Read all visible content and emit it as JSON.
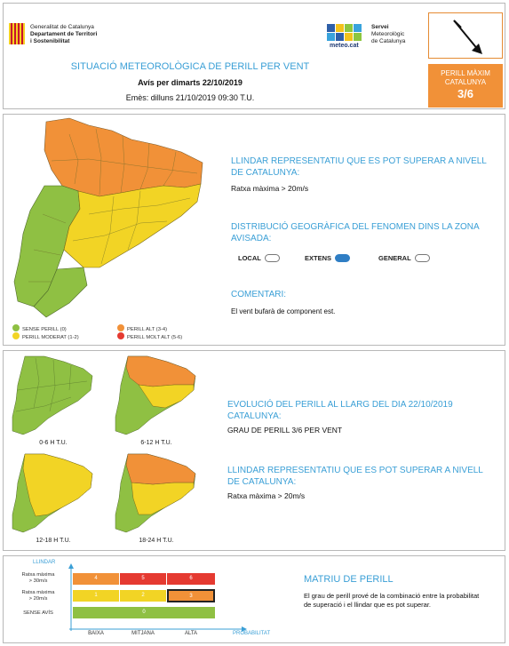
{
  "header": {
    "gencat": [
      "Generalitat de Catalunya",
      "Departament de Territori",
      "i Sostenibilitat"
    ],
    "meteo_brand": "meteo.cat",
    "smc": [
      "Servei",
      "Meteorològic",
      "de Catalunya"
    ],
    "title": "SITUACIÓ METEOROLÒGICA DE PERILL PER VENT",
    "avis": "Avís per dimarts 22/10/2019",
    "emes": "Emès: dilluns 21/10/2019 09:30 T.U.",
    "max_label_1": "PERILL MÀXIM",
    "max_label_2": "CATALUNYA",
    "max_value": "3/6",
    "arrow_icon": "wind-direction-arrow-icon"
  },
  "map_section": {
    "legend": [
      {
        "label": "SENSE PERILL (0)",
        "color": "#8fc043"
      },
      {
        "label": "PERILL MODERAT (1-2)",
        "color": "#f2d425"
      },
      {
        "label": "PERILL ALT (3-4)",
        "color": "#f19138"
      },
      {
        "label": "PERILL MOLT ALT (5-6)",
        "color": "#e53a31"
      }
    ],
    "llindar_title": "LLINDAR REPRESENTATIU QUE ES POT SUPERAR A NIVELL DE CATALUNYA:",
    "llindar_text": "Ratxa màxima > 20m/s",
    "distrib_title": "DISTRIBUCIÓ GEOGRÀFICA DEL FENOMEN DINS LA ZONA AVISADA:",
    "options": [
      {
        "label": "LOCAL",
        "active": false
      },
      {
        "label": "EXTENS",
        "active": true
      },
      {
        "label": "GENERAL",
        "active": false
      }
    ],
    "comment_title": "COMENTARI:",
    "comment_text": "El vent bufarà de component est."
  },
  "evolution": {
    "maps": [
      {
        "label": "0-6 H T.U."
      },
      {
        "label": "6-12 H T.U."
      },
      {
        "label": "12-18 H T.U."
      },
      {
        "label": "18-24 H T.U."
      }
    ],
    "title": "EVOLUCIÓ DEL PERILL AL LLARG DEL DIA 22/10/2019 CATALUNYA:",
    "grau": "GRAU DE PERILL 3/6 PER VENT",
    "llindar_title": "LLINDAR REPRESENTATIU QUE ES POT SUPERAR A NIVELL DE CATALUNYA:",
    "llindar_text": "Ratxa màxima > 20m/s"
  },
  "matrix": {
    "llindar_label": "LLINDAR",
    "rows": [
      {
        "label_1": "Ratxa màxima",
        "label_2": "> 30m/s",
        "cells": [
          "4",
          "5",
          "6"
        ]
      },
      {
        "label_1": "Ratxa màxima",
        "label_2": "> 20m/s",
        "cells": [
          "1",
          "2",
          "3"
        ]
      }
    ],
    "sense_label": "SENSE AVÍS",
    "sense_value": "0",
    "cols": [
      "BAIXA",
      "MITJANA",
      "ALTA"
    ],
    "prob_label": "PROBABILITAT",
    "title": "MATRIU DE PERILL",
    "text": "El grau de perill prové de la combinació entre la probabilitat de superació i el llindar que es pot superar.",
    "colors": {
      "green": "#8fc043",
      "yellow": "#f2d425",
      "orange": "#f19138",
      "red": "#e53a31"
    }
  }
}
